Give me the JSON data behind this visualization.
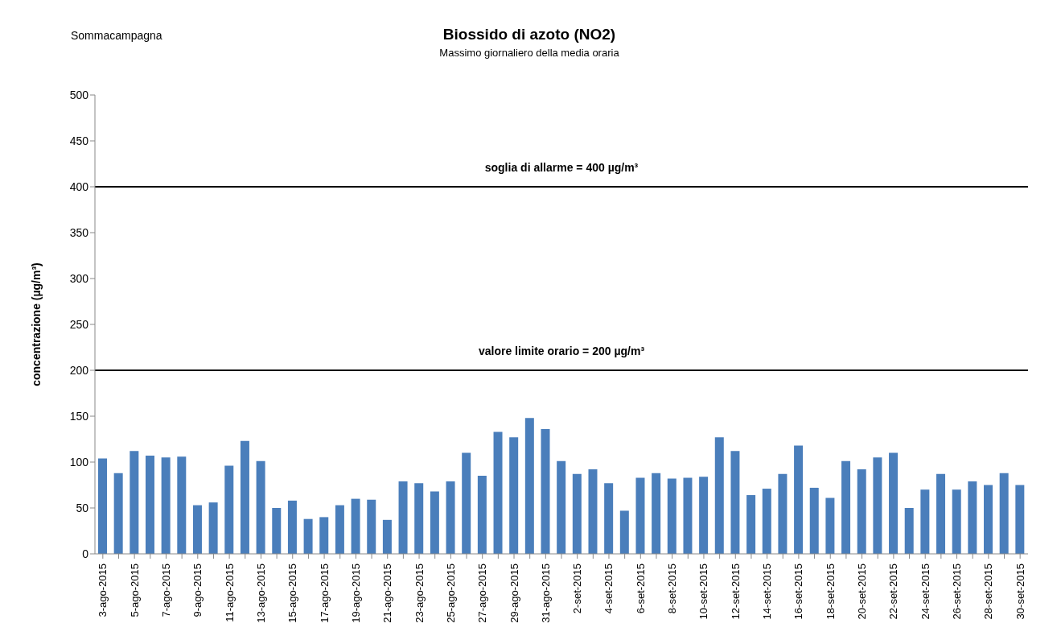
{
  "chart_data": {
    "type": "bar",
    "title": "Biossido di azoto (NO2)",
    "subtitle": "Massimo giornaliero della media oraria",
    "ylabel": "concentrazione (µg/m³)",
    "annotations": [
      "Sommacampagna"
    ],
    "categories": [
      "3-ago-2015",
      null,
      "5-ago-2015",
      null,
      "7-ago-2015",
      null,
      "9-ago-2015",
      null,
      "11-ago-2015",
      null,
      "13-ago-2015",
      null,
      "15-ago-2015",
      null,
      "17-ago-2015",
      null,
      "19-ago-2015",
      null,
      "21-ago-2015",
      null,
      "23-ago-2015",
      null,
      "25-ago-2015",
      null,
      "27-ago-2015",
      null,
      "29-ago-2015",
      null,
      "31-ago-2015",
      null,
      "2-set-2015",
      null,
      "4-set-2015",
      null,
      "6-set-2015",
      null,
      "8-set-2015",
      null,
      "10-set-2015",
      null,
      "12-set-2015",
      null,
      "14-set-2015",
      null,
      "16-set-2015",
      null,
      "18-set-2015",
      null,
      "20-set-2015",
      null,
      "22-set-2015",
      null,
      "24-set-2015",
      null,
      "26-set-2015",
      null,
      "28-set-2015",
      null,
      "30-set-2015"
    ],
    "values": [
      104,
      88,
      112,
      107,
      105,
      106,
      53,
      56,
      96,
      123,
      101,
      50,
      58,
      38,
      40,
      53,
      60,
      59,
      37,
      79,
      77,
      68,
      79,
      110,
      85,
      133,
      127,
      148,
      136,
      101,
      87,
      92,
      77,
      47,
      83,
      88,
      82,
      83,
      84,
      127,
      112,
      64,
      71,
      87,
      118,
      72,
      61,
      101,
      92,
      105,
      110,
      50,
      70,
      87,
      70,
      79,
      75,
      88,
      75
    ],
    "color": "#4a7ebb",
    "ylim": [
      0,
      500
    ],
    "yticks": [
      0,
      50,
      100,
      150,
      200,
      250,
      300,
      350,
      400,
      450,
      500
    ],
    "grid": false,
    "legend": false,
    "ref_lines": [
      {
        "axis": "y",
        "value": 400,
        "label": "soglia di allarme = 400 µg/m³",
        "color": "#000000"
      },
      {
        "axis": "y",
        "value": 200,
        "label": "valore limite orario = 200 µg/m³",
        "color": "#000000"
      }
    ]
  }
}
